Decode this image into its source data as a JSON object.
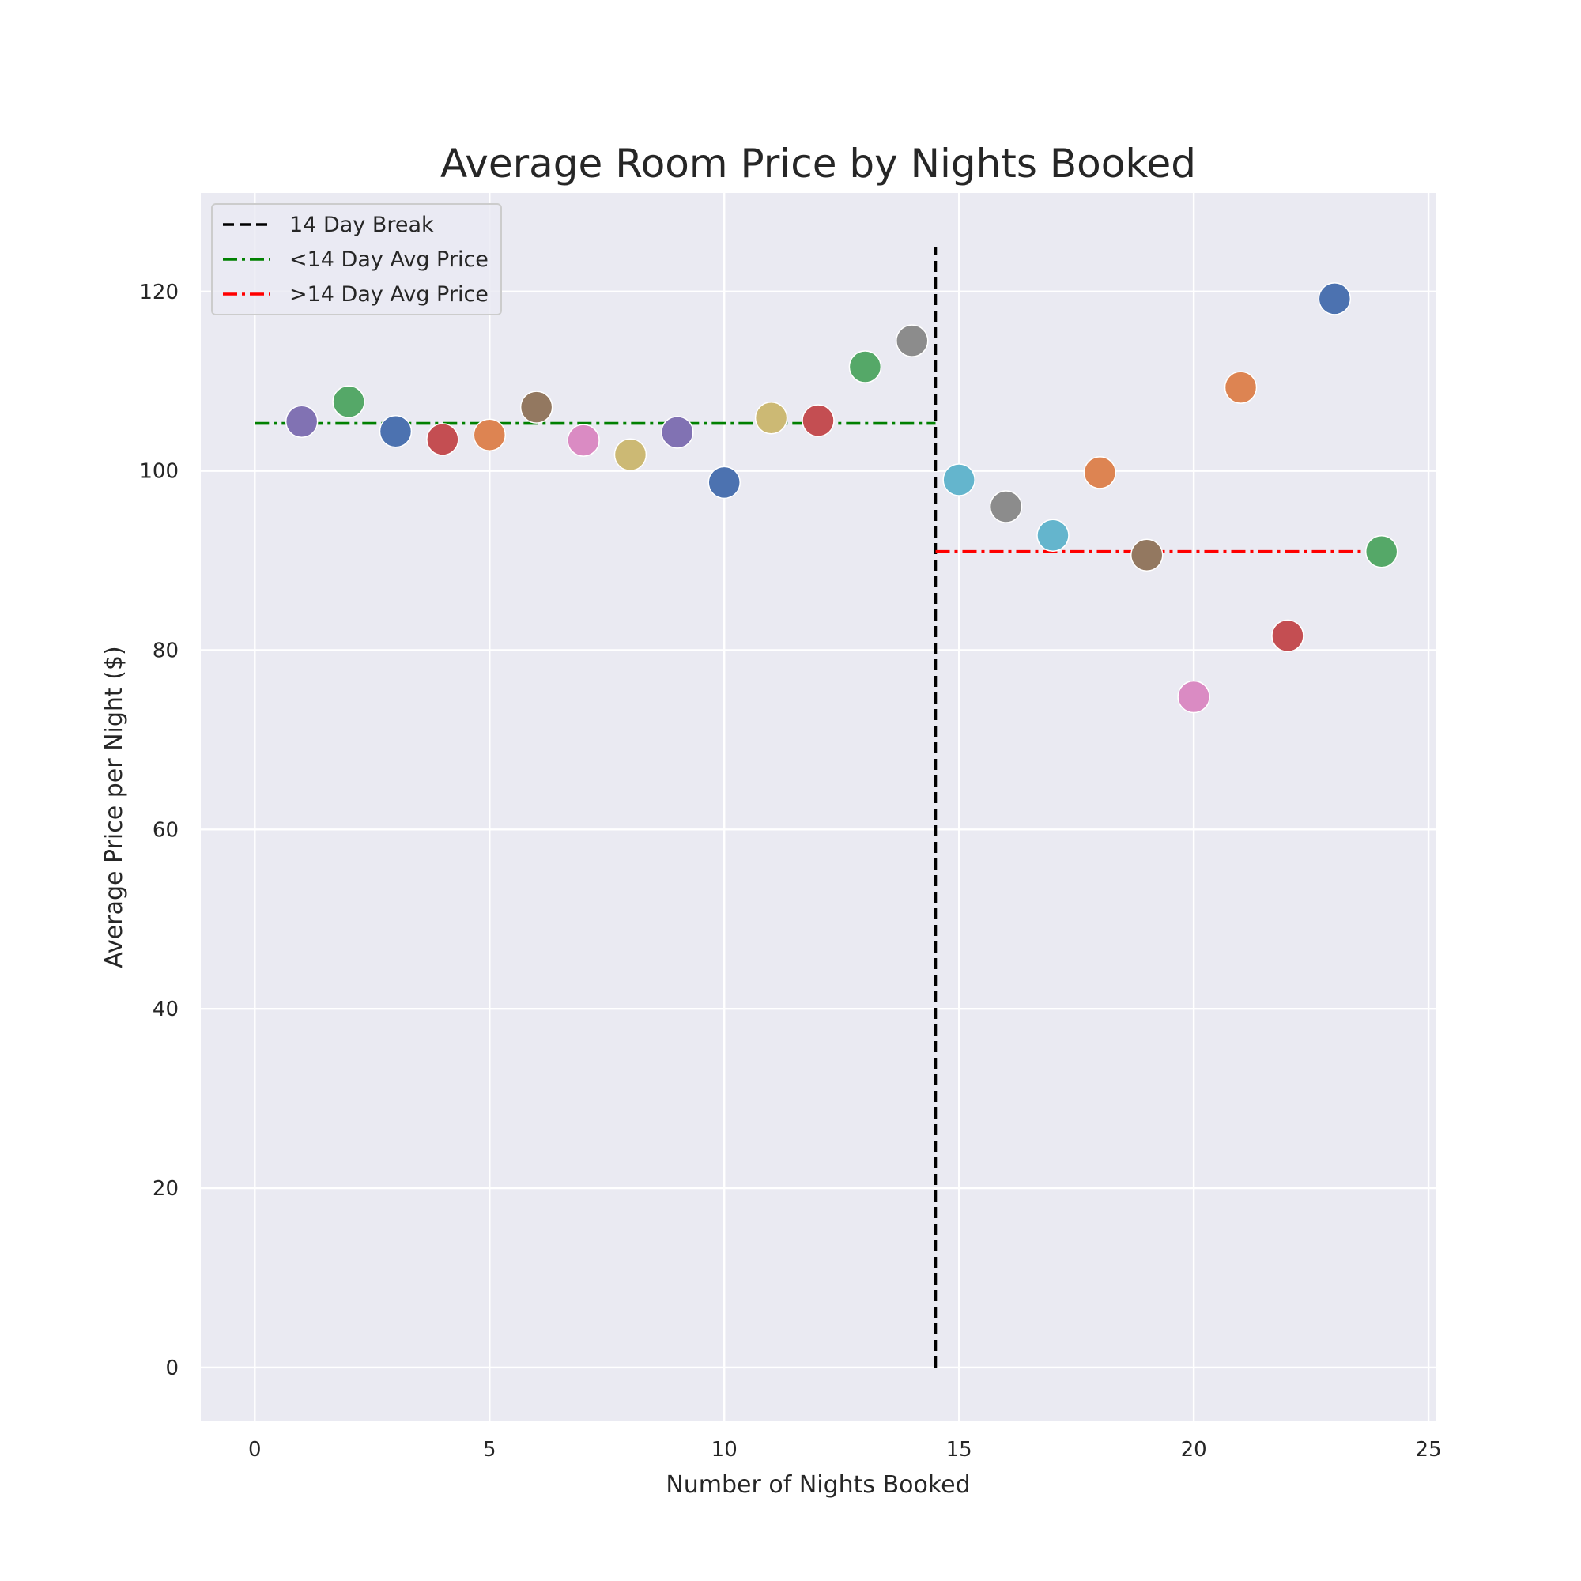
{
  "chart_data": {
    "type": "scatter",
    "title": "Average Room Price by Nights Booked",
    "xlabel": "Number of Nights Booked",
    "ylabel": "Average Price per Night ($)",
    "xlim": [
      -1.15,
      25.15
    ],
    "ylim": [
      -6,
      131
    ],
    "xticks": [
      0,
      5,
      10,
      15,
      20,
      25
    ],
    "yticks": [
      0,
      20,
      40,
      60,
      80,
      100,
      120
    ],
    "grid": true,
    "legend_position": "top-left",
    "points": [
      {
        "x": 1,
        "y": 105.5,
        "color": "#8172b3"
      },
      {
        "x": 2,
        "y": 107.7,
        "color": "#55a868"
      },
      {
        "x": 3,
        "y": 104.4,
        "color": "#4c72b0"
      },
      {
        "x": 4,
        "y": 103.5,
        "color": "#c44e52"
      },
      {
        "x": 5,
        "y": 104.0,
        "color": "#dd8452"
      },
      {
        "x": 6,
        "y": 107.1,
        "color": "#937860"
      },
      {
        "x": 7,
        "y": 103.4,
        "color": "#da8bc3"
      },
      {
        "x": 8,
        "y": 101.8,
        "color": "#ccb974"
      },
      {
        "x": 9,
        "y": 104.3,
        "color": "#8172b3"
      },
      {
        "x": 10,
        "y": 98.7,
        "color": "#4c72b0"
      },
      {
        "x": 11,
        "y": 105.9,
        "color": "#ccb974"
      },
      {
        "x": 12,
        "y": 105.6,
        "color": "#c44e52"
      },
      {
        "x": 13,
        "y": 111.6,
        "color": "#55a868"
      },
      {
        "x": 14,
        "y": 114.5,
        "color": "#8c8c8c"
      },
      {
        "x": 15,
        "y": 99.0,
        "color": "#64b5cd"
      },
      {
        "x": 16,
        "y": 96.0,
        "color": "#8c8c8c"
      },
      {
        "x": 17,
        "y": 92.8,
        "color": "#64b5cd"
      },
      {
        "x": 18,
        "y": 99.8,
        "color": "#dd8452"
      },
      {
        "x": 19,
        "y": 90.6,
        "color": "#937860"
      },
      {
        "x": 20,
        "y": 74.8,
        "color": "#da8bc3"
      },
      {
        "x": 21,
        "y": 109.3,
        "color": "#dd8452"
      },
      {
        "x": 22,
        "y": 81.6,
        "color": "#c44e52"
      },
      {
        "x": 23,
        "y": 119.2,
        "color": "#4c72b0"
      },
      {
        "x": 24,
        "y": 91.0,
        "color": "#55a868"
      }
    ],
    "reference_lines": [
      {
        "label": "14 Day Break",
        "orientation": "vertical",
        "x": 14.5,
        "y_range": [
          0,
          125
        ],
        "style": "dashed",
        "color": "#000000"
      },
      {
        "label": "<14 Day Avg Price",
        "orientation": "horizontal",
        "y": 105.3,
        "x_range": [
          0,
          14.5
        ],
        "style": "dashdot",
        "color": "#008000"
      },
      {
        "label": ">14 Day Avg Price",
        "orientation": "horizontal",
        "y": 91.0,
        "x_range": [
          14.5,
          24
        ],
        "style": "dashdot",
        "color": "#ff0000"
      }
    ],
    "colors": {
      "plot_background": "#eaeaf2",
      "grid": "#ffffff"
    }
  }
}
